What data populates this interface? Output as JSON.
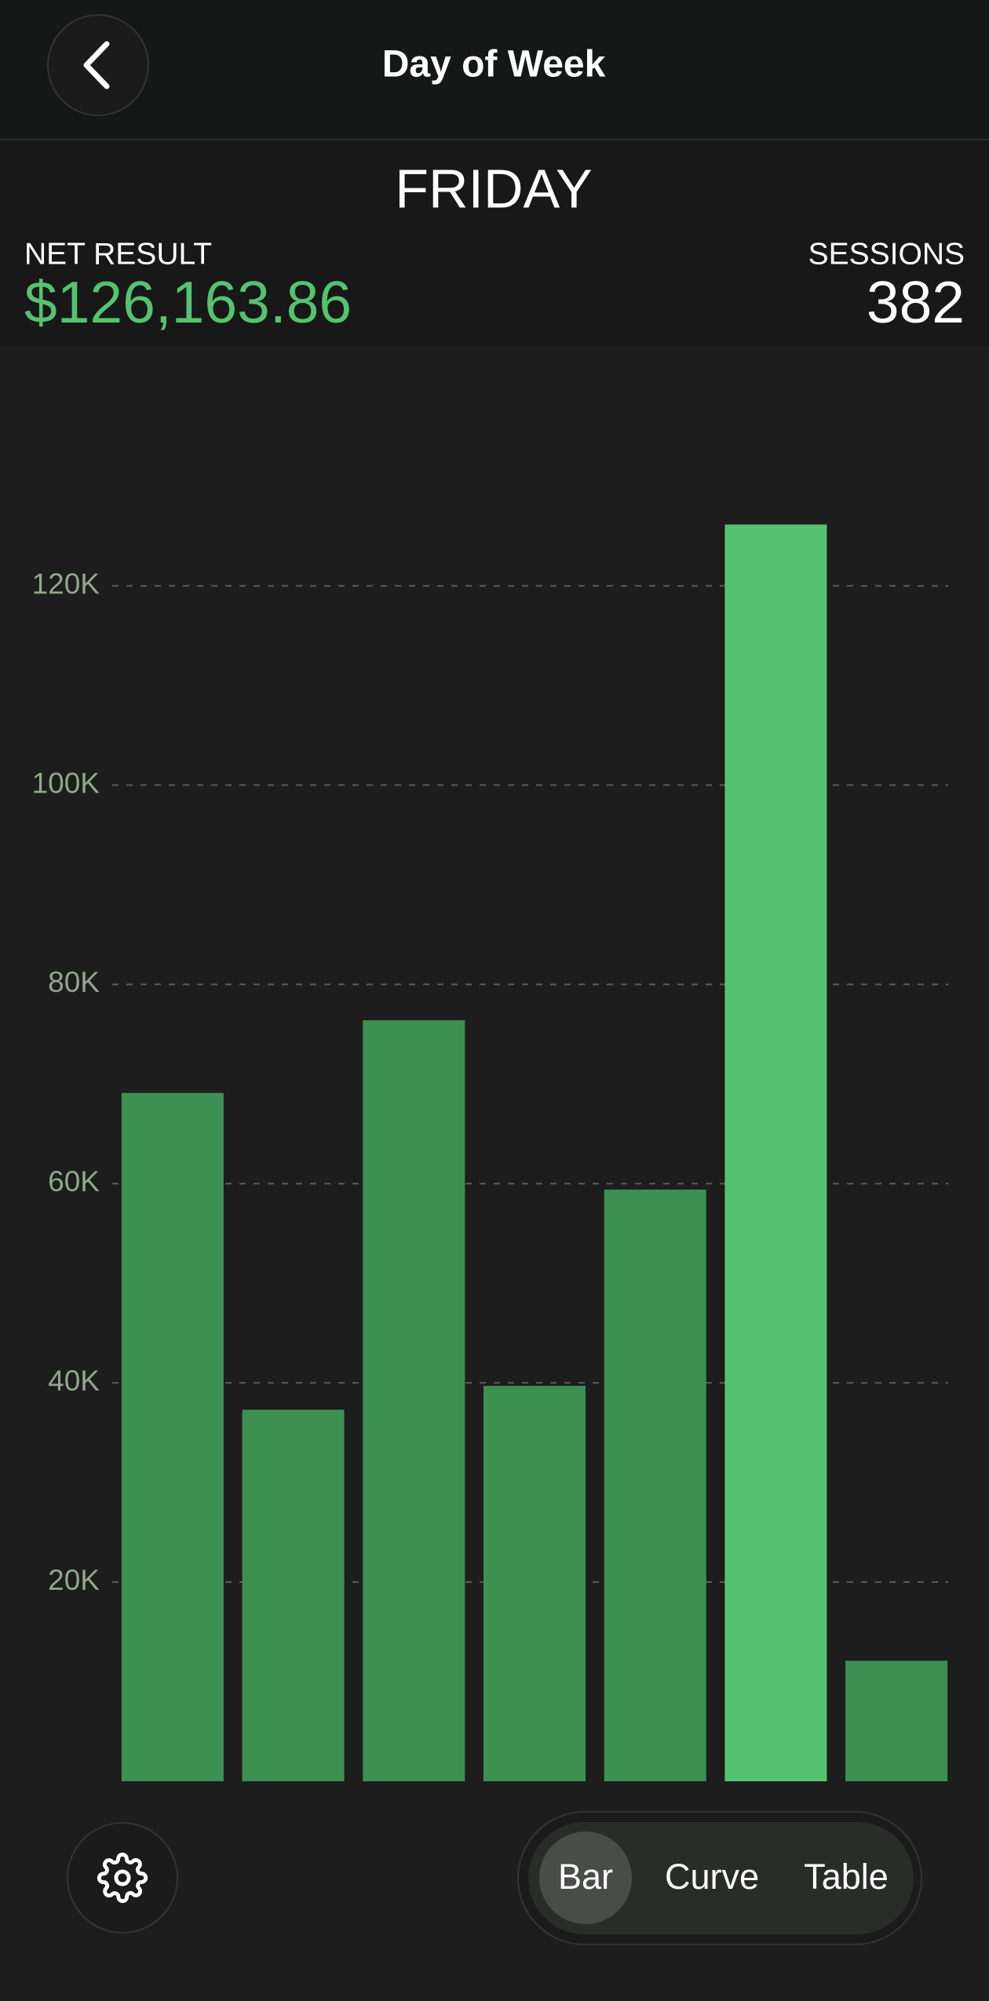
{
  "header": {
    "title": "Day of Week",
    "day": "FRIDAY",
    "net_result_label": "NET RESULT",
    "net_result": "$126,163.86",
    "sessions_label": "SESSIONS",
    "sessions": "382"
  },
  "controls": {
    "options": [
      "Bar",
      "Curve",
      "Table"
    ],
    "selected": 0
  },
  "chart_data": {
    "type": "bar",
    "categories": [
      null,
      null,
      null,
      null,
      null,
      null,
      null
    ],
    "values": [
      69100,
      37300,
      76400,
      39700,
      59400,
      126163.86,
      12100
    ],
    "colors": [
      "#3d8f52",
      "#3d8f52",
      "#3d8f52",
      "#3d8f52",
      "#3d8f52",
      "#55c271",
      "#3d8f52"
    ],
    "ylim": [
      0,
      144000
    ],
    "yticks": [
      {
        "value": 20000,
        "label": "20K"
      },
      {
        "value": 40000,
        "label": "40K"
      },
      {
        "value": 60000,
        "label": "60K"
      },
      {
        "value": 80000,
        "label": "80K"
      },
      {
        "value": 100000,
        "label": "100K"
      },
      {
        "value": 120000,
        "label": "120K"
      }
    ],
    "grid": true
  }
}
